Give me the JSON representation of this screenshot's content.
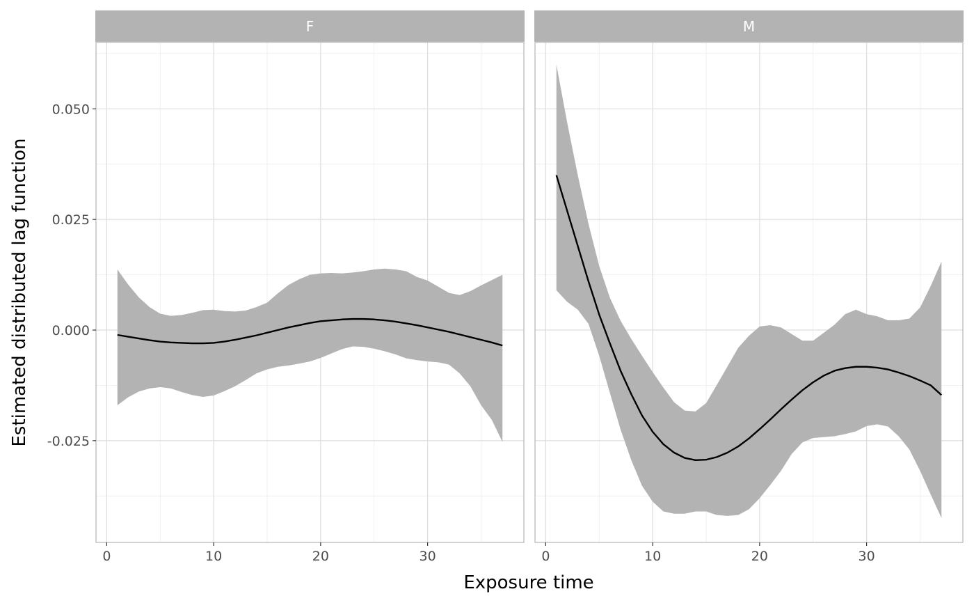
{
  "chart_data": {
    "type": "line",
    "xlabel": "Exposure time",
    "ylabel": "Estimated distributed lag function",
    "xlim": [
      -1,
      39
    ],
    "ylim": [
      -0.048,
      0.065
    ],
    "x_ticks": [
      0,
      10,
      20,
      30
    ],
    "x_tick_labels": [
      "0",
      "10",
      "20",
      "30"
    ],
    "y_ticks": [
      0.05,
      0.025,
      0.0,
      -0.025
    ],
    "y_tick_labels": [
      "0.050",
      "0.025",
      "0.000",
      "-0.025"
    ],
    "grid": true,
    "ribbon_color": "#b3b3b3",
    "line_color": "#000000",
    "strip_color": "#b3b3b3",
    "panels": [
      {
        "label": "F",
        "x": [
          1,
          2,
          3,
          4,
          5,
          6,
          7,
          8,
          9,
          10,
          11,
          12,
          13,
          14,
          15,
          16,
          17,
          18,
          19,
          20,
          21,
          22,
          23,
          24,
          25,
          26,
          27,
          28,
          29,
          30,
          31,
          32,
          33,
          34,
          35,
          36,
          37
        ],
        "estimate": [
          -0.0011,
          -0.0015,
          -0.0019,
          -0.0023,
          -0.0026,
          -0.0028,
          -0.0029,
          -0.003,
          -0.003,
          -0.0029,
          -0.0026,
          -0.0022,
          -0.0017,
          -0.0012,
          -0.0006,
          0.0,
          0.0006,
          0.0011,
          0.0016,
          0.002,
          0.0022,
          0.0024,
          0.0025,
          0.0025,
          0.0024,
          0.0022,
          0.0019,
          0.0015,
          0.0011,
          0.0006,
          0.0001,
          -0.0004,
          -0.001,
          -0.0016,
          -0.0022,
          -0.0028,
          -0.0035
        ],
        "upper": [
          0.0137,
          0.0103,
          0.0074,
          0.0052,
          0.0037,
          0.0032,
          0.0034,
          0.0039,
          0.0045,
          0.0046,
          0.0043,
          0.0042,
          0.0044,
          0.0052,
          0.0062,
          0.0083,
          0.0102,
          0.0115,
          0.0125,
          0.0128,
          0.0129,
          0.0128,
          0.013,
          0.0133,
          0.0137,
          0.0139,
          0.0137,
          0.0133,
          0.012,
          0.0112,
          0.0098,
          0.0084,
          0.0079,
          0.0088,
          0.0101,
          0.0113,
          0.0125
        ],
        "lower": [
          -0.017,
          -0.0152,
          -0.0139,
          -0.0132,
          -0.0129,
          -0.0132,
          -0.014,
          -0.0147,
          -0.0151,
          -0.0148,
          -0.0138,
          -0.0127,
          -0.0113,
          -0.0098,
          -0.0089,
          -0.0083,
          -0.008,
          -0.0076,
          -0.0071,
          -0.0063,
          -0.0053,
          -0.0043,
          -0.0037,
          -0.0038,
          -0.0042,
          -0.0048,
          -0.0055,
          -0.0064,
          -0.0068,
          -0.0071,
          -0.0073,
          -0.0078,
          -0.0098,
          -0.0127,
          -0.017,
          -0.0203,
          -0.0253
        ]
      },
      {
        "label": "M",
        "x": [
          1,
          2,
          3,
          4,
          5,
          6,
          7,
          8,
          9,
          10,
          11,
          12,
          13,
          14,
          15,
          16,
          17,
          18,
          19,
          20,
          21,
          22,
          23,
          24,
          25,
          26,
          27,
          28,
          29,
          30,
          31,
          32,
          33,
          34,
          35,
          36,
          37
        ],
        "estimate": [
          0.035,
          0.027,
          0.019,
          0.011,
          0.0035,
          -0.003,
          -0.0092,
          -0.0145,
          -0.0193,
          -0.023,
          -0.0258,
          -0.0277,
          -0.0289,
          -0.0294,
          -0.0293,
          -0.0287,
          -0.0277,
          -0.0263,
          -0.0245,
          -0.0224,
          -0.0202,
          -0.0179,
          -0.0157,
          -0.0136,
          -0.0118,
          -0.0103,
          -0.0092,
          -0.0086,
          -0.0083,
          -0.0083,
          -0.0085,
          -0.0089,
          -0.0096,
          -0.0104,
          -0.0114,
          -0.0125,
          -0.0147
        ],
        "upper": [
          0.06,
          0.047,
          0.035,
          0.024,
          0.0145,
          0.0073,
          0.0021,
          -0.002,
          -0.0058,
          -0.0095,
          -0.013,
          -0.0163,
          -0.0182,
          -0.0184,
          -0.0165,
          -0.0124,
          -0.0082,
          -0.004,
          -0.0013,
          0.0008,
          0.0011,
          0.0006,
          -0.0009,
          -0.0024,
          -0.0024,
          -0.0006,
          0.0012,
          0.0036,
          0.0046,
          0.0036,
          0.0031,
          0.0022,
          0.0022,
          0.0026,
          0.0051,
          0.01,
          0.0155
        ],
        "lower": [
          0.009,
          0.0064,
          0.0046,
          0.0014,
          -0.0058,
          -0.0142,
          -0.0225,
          -0.0294,
          -0.0352,
          -0.0388,
          -0.041,
          -0.0415,
          -0.0415,
          -0.041,
          -0.041,
          -0.0418,
          -0.042,
          -0.0418,
          -0.0405,
          -0.038,
          -0.035,
          -0.0318,
          -0.028,
          -0.0254,
          -0.0244,
          -0.0242,
          -0.024,
          -0.0235,
          -0.0229,
          -0.0217,
          -0.0213,
          -0.0218,
          -0.024,
          -0.027,
          -0.0318,
          -0.0372,
          -0.0425
        ]
      }
    ]
  }
}
